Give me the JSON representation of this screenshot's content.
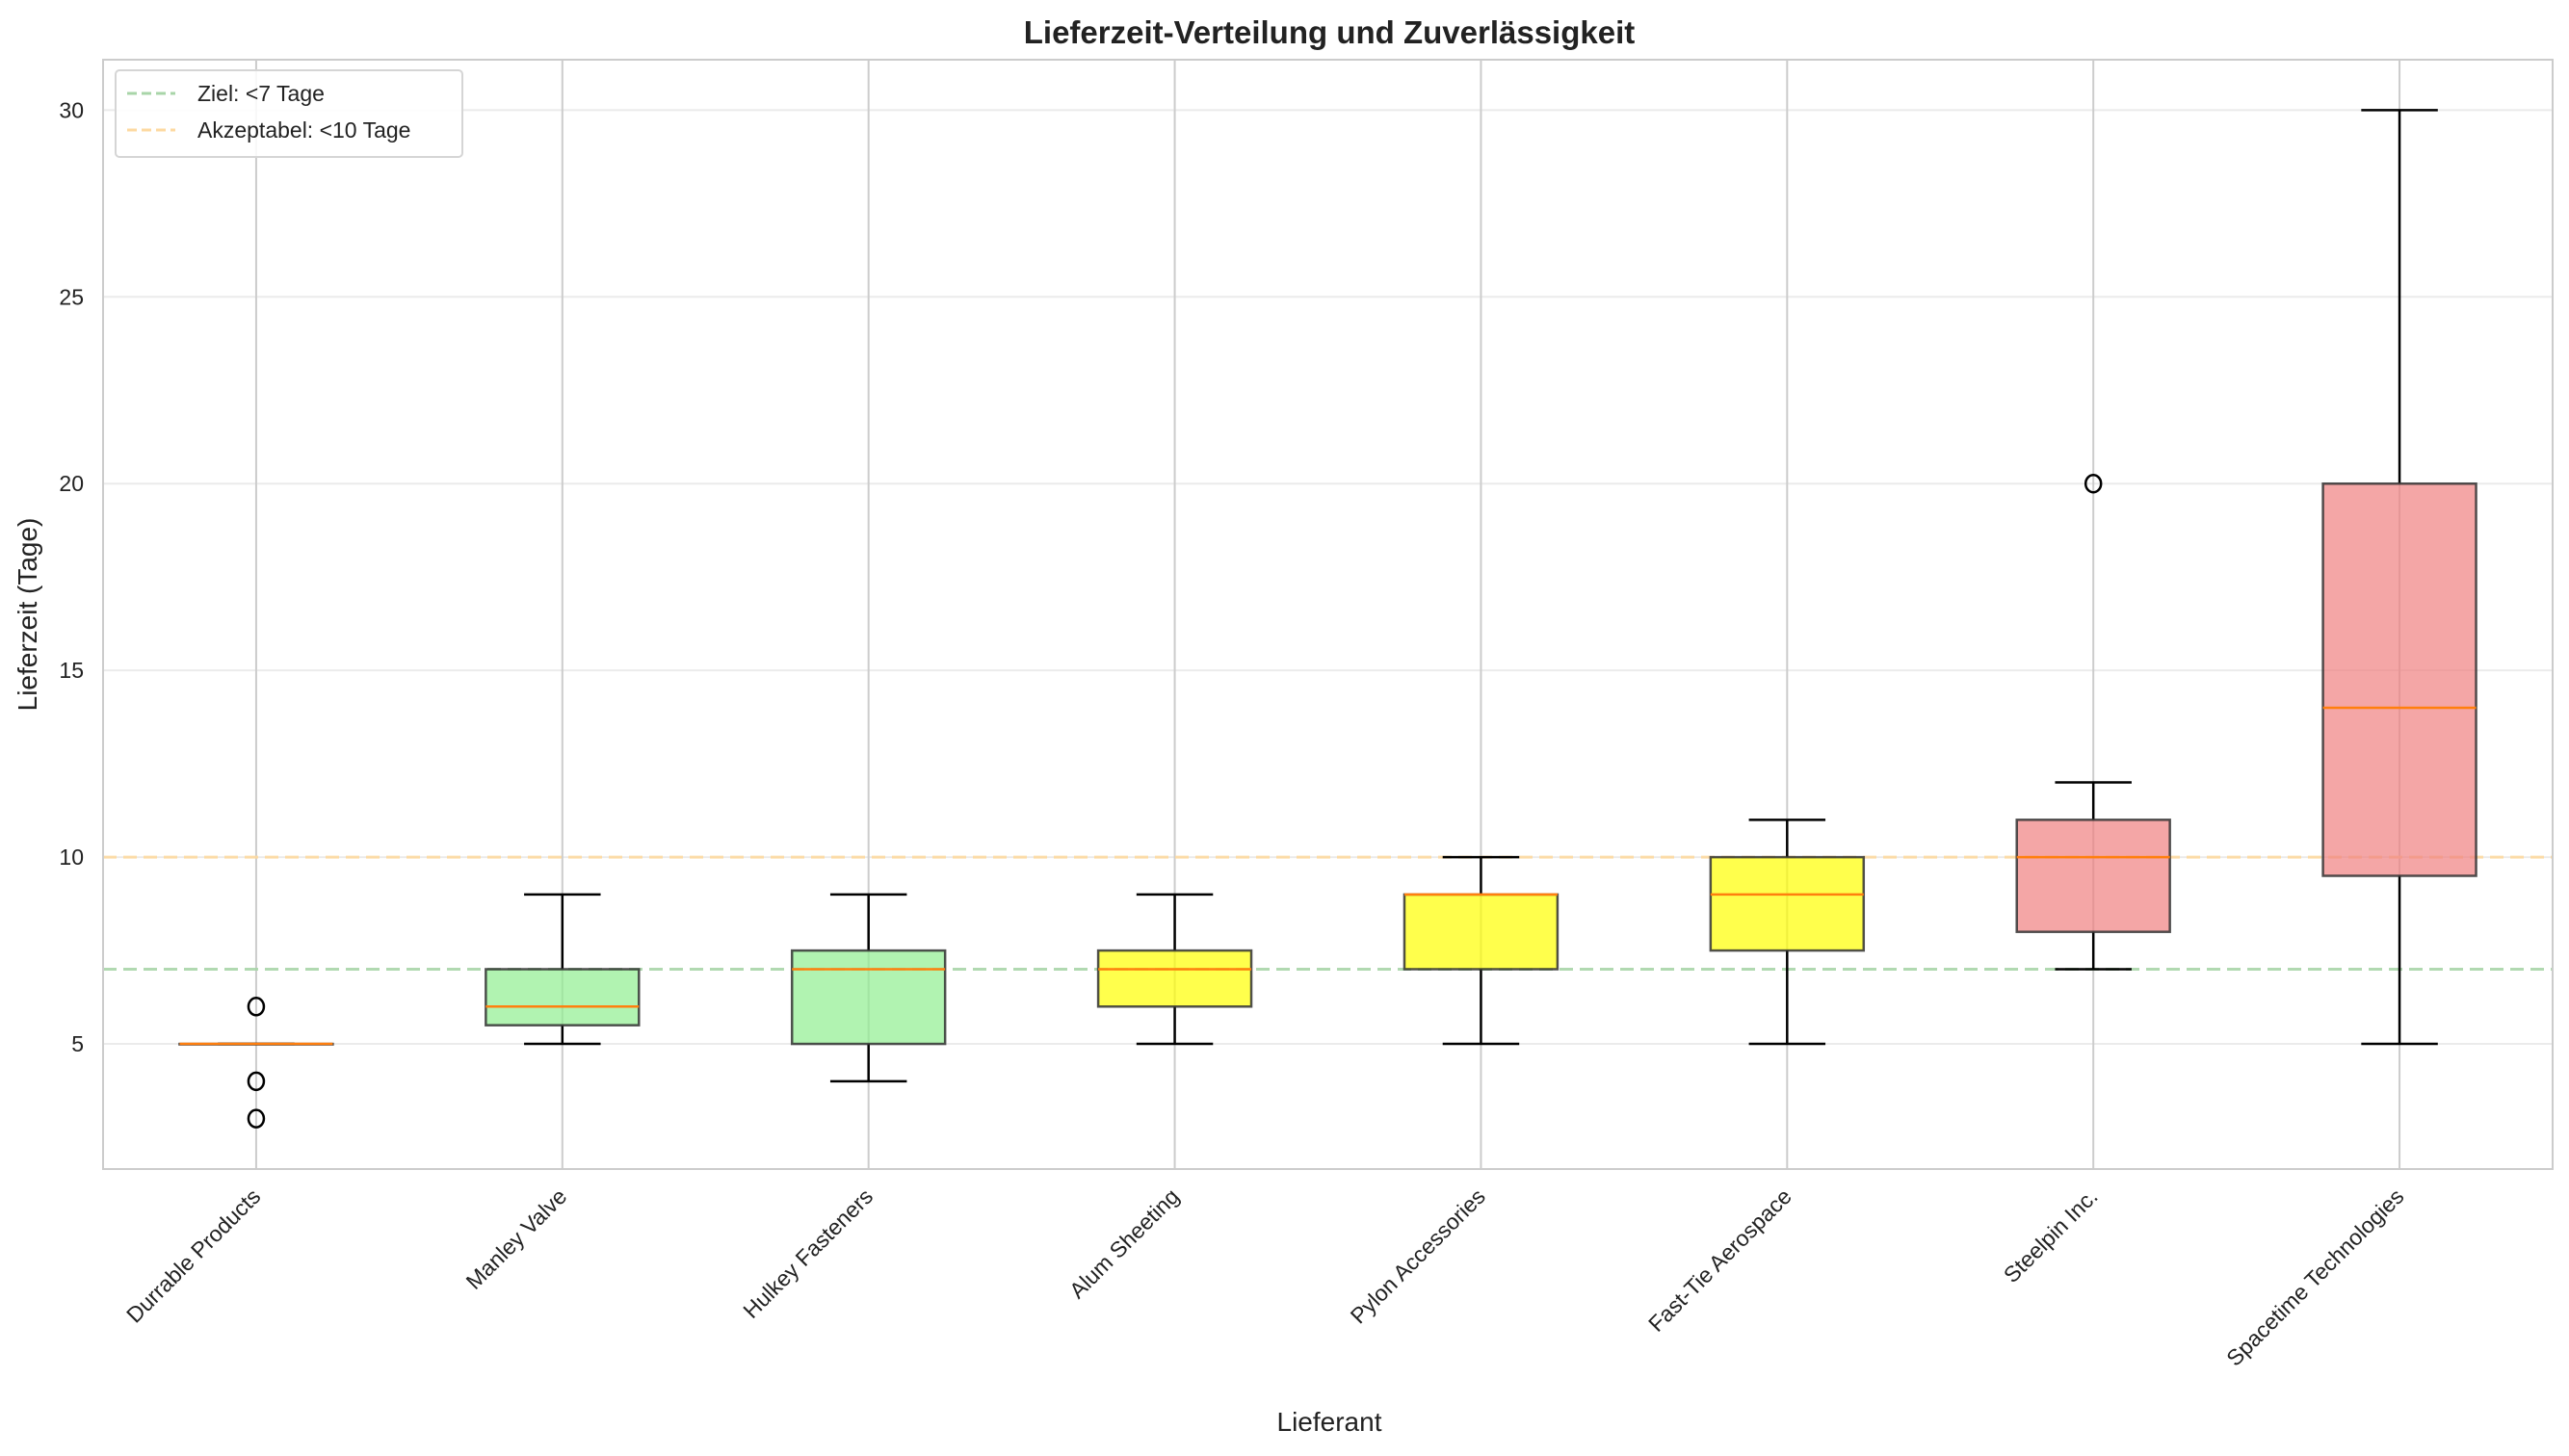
{
  "chart_data": {
    "type": "box",
    "title": "Lieferzeit-Verteilung und Zuverlässigkeit",
    "xlabel": "Lieferant",
    "ylabel": "Lieferzeit (Tage)",
    "ylim": [
      1.65,
      31.35
    ],
    "yticks": [
      5,
      10,
      15,
      20,
      25,
      30
    ],
    "grid": true,
    "legend": {
      "placement": "top-left",
      "entries": [
        {
          "label": "Ziel: <7 Tage",
          "color": "#a8d5a8",
          "style": "dashed"
        },
        {
          "label": "Akzeptabel: <10 Tage",
          "color": "#fdd9a0",
          "style": "dashed"
        }
      ]
    },
    "reference_lines": [
      {
        "name": "Ziel",
        "y": 7,
        "color": "#a8d5a8"
      },
      {
        "name": "Akzeptabel",
        "y": 10,
        "color": "#fdd9a0"
      }
    ],
    "categories": [
      "Durrable Products",
      "Manley Valve",
      "Hulkey Fasteners",
      "Alum Sheeting",
      "Pylon Accessories",
      "Fast-Tie Aerospace",
      "Steelpin Inc.",
      "Spacetime Technologies"
    ],
    "boxes": [
      {
        "name": "Durrable Products",
        "whisker_low": 5,
        "q1": 5,
        "median": 5,
        "q3": 5,
        "whisker_high": 5,
        "outliers": [
          6,
          4,
          3
        ],
        "color": "#90ee90"
      },
      {
        "name": "Manley Valve",
        "whisker_low": 5,
        "q1": 5.5,
        "median": 6,
        "q3": 7,
        "whisker_high": 9,
        "outliers": [],
        "color": "#90ee90"
      },
      {
        "name": "Hulkey Fasteners",
        "whisker_low": 4,
        "q1": 5,
        "median": 7,
        "q3": 7.5,
        "whisker_high": 9,
        "outliers": [],
        "color": "#90ee90"
      },
      {
        "name": "Alum Sheeting",
        "whisker_low": 5,
        "q1": 6,
        "median": 7,
        "q3": 7.5,
        "whisker_high": 9,
        "outliers": [],
        "color": "#ffff00"
      },
      {
        "name": "Pylon Accessories",
        "whisker_low": 5,
        "q1": 7,
        "median": 9,
        "q3": 9,
        "whisker_high": 10,
        "outliers": [],
        "color": "#ffff00"
      },
      {
        "name": "Fast-Tie Aerospace",
        "whisker_low": 5,
        "q1": 7.5,
        "median": 9,
        "q3": 10,
        "whisker_high": 11,
        "outliers": [],
        "color": "#ffff00"
      },
      {
        "name": "Steelpin Inc.",
        "whisker_low": 7,
        "q1": 8,
        "median": 10,
        "q3": 11,
        "whisker_high": 12,
        "outliers": [
          20
        ],
        "color": "#f08080"
      },
      {
        "name": "Spacetime Technologies",
        "whisker_low": 5,
        "q1": 9.5,
        "median": 14,
        "q3": 20,
        "whisker_high": 30,
        "outliers": [],
        "color": "#f08080"
      }
    ],
    "median_color": "#ff7f0e"
  }
}
